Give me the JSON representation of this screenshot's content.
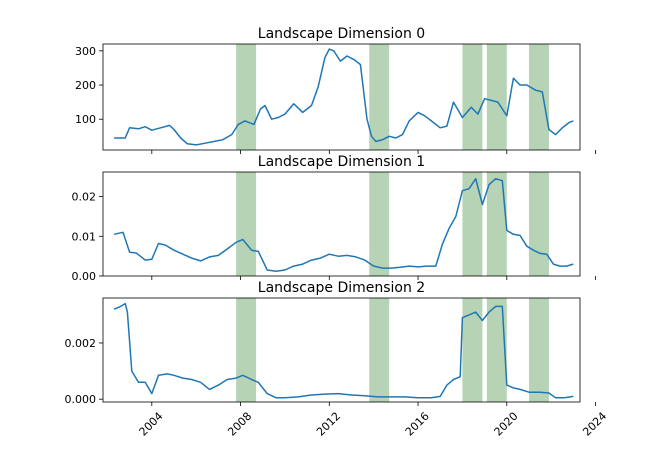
{
  "chart_data": [
    {
      "type": "line",
      "title": "Landscape Dimension 0",
      "xlabel": "",
      "ylabel": "",
      "xlim": [
        2001.8,
        2023.3
      ],
      "ylim": [
        10,
        320
      ],
      "yticks": [
        100,
        200,
        300
      ],
      "ytick_labels": [
        "100",
        "200",
        "300"
      ],
      "series": [
        {
          "name": "Landscape Dimension 0",
          "color": "#1f77b4",
          "x": [
            2002.3,
            2002.8,
            2003.0,
            2003.4,
            2003.7,
            2004.0,
            2004.4,
            2004.8,
            2005.0,
            2005.3,
            2005.6,
            2006.0,
            2006.4,
            2006.8,
            2007.2,
            2007.6,
            2007.9,
            2008.2,
            2008.6,
            2008.9,
            2009.1,
            2009.4,
            2009.7,
            2010.0,
            2010.4,
            2010.8,
            2011.2,
            2011.5,
            2011.8,
            2012.0,
            2012.2,
            2012.5,
            2012.8,
            2013.1,
            2013.4,
            2013.7,
            2013.9,
            2014.1,
            2014.4,
            2014.7,
            2015.0,
            2015.3,
            2015.6,
            2016.0,
            2016.3,
            2016.7,
            2017.0,
            2017.3,
            2017.6,
            2018.0,
            2018.4,
            2018.7,
            2019.0,
            2019.3,
            2019.6,
            2020.0,
            2020.3,
            2020.6,
            2020.9,
            2021.3,
            2021.6,
            2021.9,
            2022.2,
            2022.5,
            2022.8,
            2023.0
          ],
          "values": [
            45,
            45,
            75,
            72,
            78,
            68,
            75,
            82,
            70,
            45,
            28,
            25,
            30,
            35,
            40,
            55,
            85,
            95,
            85,
            130,
            140,
            100,
            105,
            115,
            145,
            120,
            140,
            195,
            280,
            305,
            300,
            270,
            285,
            275,
            260,
            100,
            50,
            35,
            40,
            50,
            45,
            55,
            95,
            120,
            110,
            90,
            75,
            80,
            150,
            105,
            135,
            115,
            160,
            155,
            150,
            110,
            220,
            200,
            200,
            185,
            180,
            70,
            55,
            75,
            90,
            95
          ]
        }
      ],
      "shaded_regions": [
        [
          2007.8,
          2008.7
        ],
        [
          2013.8,
          2014.7
        ],
        [
          2018.0,
          2018.9
        ],
        [
          2019.1,
          2020.0
        ],
        [
          2021.0,
          2021.9
        ]
      ]
    },
    {
      "type": "line",
      "title": "Landscape Dimension 1",
      "xlabel": "",
      "ylabel": "",
      "xlim": [
        2001.8,
        2023.3
      ],
      "ylim": [
        0,
        0.0262
      ],
      "yticks": [
        0.0,
        0.01,
        0.02
      ],
      "ytick_labels": [
        "0.00",
        "0.01",
        "0.02"
      ],
      "series": [
        {
          "name": "Landscape Dimension 1",
          "color": "#1f77b4",
          "x": [
            2002.3,
            2002.7,
            2003.0,
            2003.3,
            2003.7,
            2004.0,
            2004.3,
            2004.6,
            2005.0,
            2005.4,
            2005.8,
            2006.2,
            2006.6,
            2007.0,
            2007.4,
            2007.8,
            2008.1,
            2008.5,
            2008.8,
            2009.2,
            2009.6,
            2010.0,
            2010.4,
            2010.8,
            2011.2,
            2011.6,
            2012.0,
            2012.4,
            2012.8,
            2013.2,
            2013.6,
            2014.0,
            2014.4,
            2014.8,
            2015.2,
            2015.6,
            2016.0,
            2016.4,
            2016.8,
            2017.1,
            2017.4,
            2017.7,
            2018.0,
            2018.3,
            2018.6,
            2018.9,
            2019.2,
            2019.5,
            2019.8,
            2020.0,
            2020.3,
            2020.6,
            2020.9,
            2021.2,
            2021.5,
            2021.8,
            2022.1,
            2022.4,
            2022.7,
            2023.0
          ],
          "values": [
            0.0105,
            0.011,
            0.006,
            0.0058,
            0.004,
            0.0042,
            0.0082,
            0.0078,
            0.0065,
            0.0055,
            0.0045,
            0.0038,
            0.0048,
            0.0052,
            0.0068,
            0.0085,
            0.0092,
            0.0065,
            0.0062,
            0.0015,
            0.0012,
            0.0015,
            0.0025,
            0.003,
            0.004,
            0.0045,
            0.0055,
            0.005,
            0.0052,
            0.0048,
            0.004,
            0.0025,
            0.002,
            0.002,
            0.0022,
            0.0025,
            0.0023,
            0.0025,
            0.0025,
            0.008,
            0.012,
            0.015,
            0.0215,
            0.022,
            0.0245,
            0.018,
            0.023,
            0.0245,
            0.024,
            0.0115,
            0.0105,
            0.0102,
            0.0075,
            0.0065,
            0.0057,
            0.0055,
            0.003,
            0.0025,
            0.0025,
            0.003
          ]
        }
      ],
      "shaded_regions": [
        [
          2007.8,
          2008.7
        ],
        [
          2013.8,
          2014.7
        ],
        [
          2018.0,
          2018.9
        ],
        [
          2019.1,
          2020.0
        ],
        [
          2021.0,
          2021.9
        ]
      ]
    },
    {
      "type": "line",
      "title": "Landscape Dimension 2",
      "xlabel": "",
      "ylabel": "",
      "xlim": [
        2001.8,
        2023.3
      ],
      "ylim": [
        -0.0001,
        0.0036
      ],
      "yticks": [
        0.0,
        0.002
      ],
      "ytick_labels": [
        "0.000",
        "0.002"
      ],
      "xticks": [
        2004,
        2008,
        2012,
        2016,
        2020,
        2024
      ],
      "xtick_labels": [
        "2004",
        "2008",
        "2012",
        "2016",
        "2020",
        "2024"
      ],
      "series": [
        {
          "name": "Landscape Dimension 2",
          "color": "#1f77b4",
          "x": [
            2002.3,
            2002.6,
            2002.8,
            2002.9,
            2003.1,
            2003.4,
            2003.7,
            2004.0,
            2004.3,
            2004.7,
            2005.0,
            2005.4,
            2005.8,
            2006.2,
            2006.6,
            2007.0,
            2007.4,
            2007.8,
            2008.1,
            2008.5,
            2008.8,
            2009.2,
            2009.6,
            2010.0,
            2010.6,
            2011.2,
            2011.8,
            2012.4,
            2013.0,
            2013.6,
            2014.2,
            2014.8,
            2015.4,
            2016.0,
            2016.6,
            2017.0,
            2017.3,
            2017.6,
            2017.9,
            2018.0,
            2018.3,
            2018.6,
            2018.9,
            2019.2,
            2019.5,
            2019.8,
            2020.0,
            2020.3,
            2020.6,
            2021.0,
            2021.5,
            2021.9,
            2022.2,
            2022.6,
            2023.0
          ],
          "values": [
            0.0032,
            0.0033,
            0.0034,
            0.0031,
            0.001,
            0.0006,
            0.0006,
            0.0002,
            0.00085,
            0.0009,
            0.00085,
            0.00075,
            0.0007,
            0.0006,
            0.00035,
            0.0005,
            0.0007,
            0.00075,
            0.00085,
            0.0007,
            0.0006,
            0.0002,
            5e-05,
            5e-05,
            8e-05,
            0.00015,
            0.00018,
            0.0002,
            0.00015,
            0.00012,
            8e-05,
            8e-05,
            8e-05,
            5e-05,
            5e-05,
            0.0001,
            0.0005,
            0.0007,
            0.0008,
            0.0029,
            0.003,
            0.0031,
            0.0028,
            0.0031,
            0.0033,
            0.0033,
            0.0005,
            0.0004,
            0.00035,
            0.00025,
            0.00025,
            0.00022,
            5e-05,
            5e-05,
            0.0001
          ]
        }
      ],
      "shaded_regions": [
        [
          2007.8,
          2008.7
        ],
        [
          2013.8,
          2014.7
        ],
        [
          2018.0,
          2018.9
        ],
        [
          2019.1,
          2020.0
        ],
        [
          2021.0,
          2021.9
        ]
      ]
    }
  ],
  "colors": {
    "line": "#1f77b4",
    "shade": "#8fbc8f"
  }
}
